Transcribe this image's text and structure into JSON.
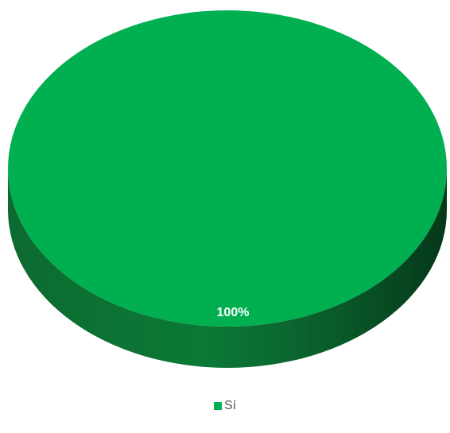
{
  "chart_data": {
    "type": "pie",
    "title": "",
    "categories": [
      "Sí"
    ],
    "values": [
      100
    ],
    "data_labels": [
      "100%"
    ],
    "legend_position": "bottom",
    "colors": [
      "#00B050"
    ]
  },
  "legend": {
    "items": [
      {
        "label": "Sí",
        "color": "#00B050"
      }
    ]
  }
}
